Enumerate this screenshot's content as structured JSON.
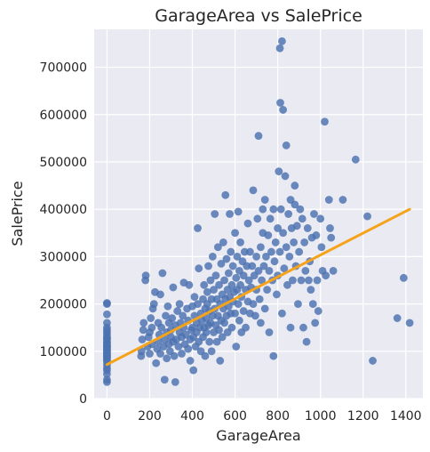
{
  "chart_data": {
    "type": "scatter",
    "title": "GarageArea vs SalePrice",
    "xlabel": "GarageArea",
    "ylabel": "SalePrice",
    "xlim": [
      -60,
      1480
    ],
    "ylim": [
      0,
      780000
    ],
    "xticks": [
      0,
      200,
      400,
      600,
      800,
      1000,
      1200,
      1400
    ],
    "yticks": [
      0,
      100000,
      200000,
      300000,
      400000,
      500000,
      600000,
      700000
    ],
    "grid": true,
    "colors": {
      "points": "#4c72b0",
      "regression": "#f5a31a",
      "background": "#eaeaf2",
      "grid": "#ffffff"
    },
    "regression_line": {
      "x": [
        0,
        1418
      ],
      "y": [
        72000,
        400000
      ]
    },
    "points": [
      [
        0,
        35000
      ],
      [
        0,
        40000
      ],
      [
        0,
        52000
      ],
      [
        0,
        60000
      ],
      [
        0,
        65000
      ],
      [
        0,
        72000
      ],
      [
        0,
        78000
      ],
      [
        0,
        82000
      ],
      [
        0,
        85000
      ],
      [
        0,
        88000
      ],
      [
        0,
        90000
      ],
      [
        0,
        92000
      ],
      [
        0,
        95000
      ],
      [
        0,
        98000
      ],
      [
        0,
        100000
      ],
      [
        0,
        102000
      ],
      [
        0,
        105000
      ],
      [
        0,
        108000
      ],
      [
        0,
        110000
      ],
      [
        0,
        112000
      ],
      [
        0,
        115000
      ],
      [
        0,
        118000
      ],
      [
        0,
        120000
      ],
      [
        0,
        125000
      ],
      [
        0,
        128000
      ],
      [
        0,
        130000
      ],
      [
        0,
        135000
      ],
      [
        0,
        140000
      ],
      [
        0,
        145000
      ],
      [
        0,
        150000
      ],
      [
        0,
        160000
      ],
      [
        0,
        178000
      ],
      [
        0,
        200000
      ],
      [
        0,
        202000
      ],
      [
        160,
        90000
      ],
      [
        162,
        100000
      ],
      [
        165,
        125000
      ],
      [
        170,
        145000
      ],
      [
        172,
        160000
      ],
      [
        180,
        250000
      ],
      [
        182,
        260000
      ],
      [
        190,
        110000
      ],
      [
        195,
        130000
      ],
      [
        200,
        95000
      ],
      [
        200,
        140000
      ],
      [
        205,
        170000
      ],
      [
        210,
        115000
      ],
      [
        210,
        150000
      ],
      [
        215,
        190000
      ],
      [
        220,
        200000
      ],
      [
        225,
        225000
      ],
      [
        230,
        75000
      ],
      [
        235,
        105000
      ],
      [
        240,
        120000
      ],
      [
        240,
        160000
      ],
      [
        245,
        135000
      ],
      [
        250,
        95000
      ],
      [
        250,
        220000
      ],
      [
        255,
        150000
      ],
      [
        260,
        265000
      ],
      [
        265,
        110000
      ],
      [
        270,
        40000
      ],
      [
        270,
        125000
      ],
      [
        275,
        175000
      ],
      [
        280,
        85000
      ],
      [
        280,
        140000
      ],
      [
        285,
        195000
      ],
      [
        290,
        115000
      ],
      [
        290,
        160000
      ],
      [
        295,
        100000
      ],
      [
        300,
        130000
      ],
      [
        300,
        145000
      ],
      [
        305,
        170000
      ],
      [
        310,
        120000
      ],
      [
        310,
        235000
      ],
      [
        315,
        90000
      ],
      [
        320,
        155000
      ],
      [
        320,
        35000
      ],
      [
        325,
        125000
      ],
      [
        330,
        185000
      ],
      [
        335,
        110000
      ],
      [
        340,
        140000
      ],
      [
        340,
        200000
      ],
      [
        345,
        160000
      ],
      [
        350,
        95000
      ],
      [
        350,
        130000
      ],
      [
        355,
        175000
      ],
      [
        360,
        150000
      ],
      [
        360,
        245000
      ],
      [
        365,
        115000
      ],
      [
        370,
        135000
      ],
      [
        375,
        190000
      ],
      [
        380,
        105000
      ],
      [
        380,
        165000
      ],
      [
        385,
        240000
      ],
      [
        390,
        125000
      ],
      [
        390,
        80000
      ],
      [
        395,
        145000
      ],
      [
        400,
        150000
      ],
      [
        400,
        195000
      ],
      [
        405,
        60000
      ],
      [
        405,
        130000
      ],
      [
        410,
        175000
      ],
      [
        410,
        215000
      ],
      [
        415,
        110000
      ],
      [
        420,
        140000
      ],
      [
        420,
        160000
      ],
      [
        425,
        200000
      ],
      [
        425,
        360000
      ],
      [
        430,
        120000
      ],
      [
        430,
        275000
      ],
      [
        435,
        150000
      ],
      [
        440,
        180000
      ],
      [
        440,
        100000
      ],
      [
        445,
        165000
      ],
      [
        450,
        130000
      ],
      [
        450,
        210000
      ],
      [
        455,
        240000
      ],
      [
        455,
        150000
      ],
      [
        460,
        190000
      ],
      [
        460,
        90000
      ],
      [
        465,
        170000
      ],
      [
        465,
        140000
      ],
      [
        470,
        225000
      ],
      [
        470,
        200000
      ],
      [
        475,
        155000
      ],
      [
        475,
        280000
      ],
      [
        480,
        120000
      ],
      [
        480,
        185000
      ],
      [
        485,
        250000
      ],
      [
        485,
        160000
      ],
      [
        490,
        210000
      ],
      [
        490,
        100000
      ],
      [
        495,
        175000
      ],
      [
        495,
        300000
      ],
      [
        500,
        140000
      ],
      [
        500,
        230000
      ],
      [
        505,
        190000
      ],
      [
        505,
        390000
      ],
      [
        510,
        155000
      ],
      [
        510,
        260000
      ],
      [
        515,
        210000
      ],
      [
        515,
        120000
      ],
      [
        520,
        175000
      ],
      [
        520,
        320000
      ],
      [
        525,
        145000
      ],
      [
        525,
        240000
      ],
      [
        530,
        200000
      ],
      [
        530,
        80000
      ],
      [
        535,
        165000
      ],
      [
        535,
        285000
      ],
      [
        540,
        220000
      ],
      [
        540,
        130000
      ],
      [
        545,
        190000
      ],
      [
        545,
        330000
      ],
      [
        550,
        250000
      ],
      [
        550,
        160000
      ],
      [
        555,
        210000
      ],
      [
        555,
        430000
      ],
      [
        560,
        175000
      ],
      [
        560,
        295000
      ],
      [
        565,
        230000
      ],
      [
        565,
        140000
      ],
      [
        570,
        195000
      ],
      [
        570,
        265000
      ],
      [
        575,
        215000
      ],
      [
        575,
        390000
      ],
      [
        580,
        180000
      ],
      [
        580,
        310000
      ],
      [
        585,
        240000
      ],
      [
        585,
        150000
      ],
      [
        590,
        205000
      ],
      [
        590,
        280000
      ],
      [
        595,
        225000
      ],
      [
        600,
        180000
      ],
      [
        600,
        350000
      ],
      [
        605,
        255000
      ],
      [
        605,
        110000
      ],
      [
        610,
        230000
      ],
      [
        610,
        300000
      ],
      [
        615,
        200000
      ],
      [
        615,
        395000
      ],
      [
        620,
        270000
      ],
      [
        620,
        165000
      ],
      [
        625,
        240000
      ],
      [
        625,
        330000
      ],
      [
        630,
        215000
      ],
      [
        630,
        140000
      ],
      [
        635,
        290000
      ],
      [
        640,
        185000
      ],
      [
        640,
        260000
      ],
      [
        645,
        310000
      ],
      [
        650,
        230000
      ],
      [
        650,
        150000
      ],
      [
        655,
        280000
      ],
      [
        660,
        205000
      ],
      [
        660,
        370000
      ],
      [
        665,
        250000
      ],
      [
        670,
        180000
      ],
      [
        670,
        310000
      ],
      [
        675,
        235000
      ],
      [
        680,
        280000
      ],
      [
        685,
        200000
      ],
      [
        685,
        440000
      ],
      [
        690,
        260000
      ],
      [
        695,
        175000
      ],
      [
        700,
        300000
      ],
      [
        700,
        230000
      ],
      [
        705,
        380000
      ],
      [
        710,
        270000
      ],
      [
        710,
        555000
      ],
      [
        715,
        210000
      ],
      [
        720,
        320000
      ],
      [
        720,
        160000
      ],
      [
        725,
        250000
      ],
      [
        730,
        350000
      ],
      [
        730,
        400000
      ],
      [
        735,
        280000
      ],
      [
        740,
        190000
      ],
      [
        740,
        420000
      ],
      [
        745,
        300000
      ],
      [
        750,
        230000
      ],
      [
        755,
        345000
      ],
      [
        760,
        270000
      ],
      [
        760,
        140000
      ],
      [
        765,
        380000
      ],
      [
        770,
        310000
      ],
      [
        775,
        250000
      ],
      [
        780,
        400000
      ],
      [
        780,
        90000
      ],
      [
        785,
        290000
      ],
      [
        790,
        330000
      ],
      [
        795,
        220000
      ],
      [
        800,
        360000
      ],
      [
        800,
        260000
      ],
      [
        805,
        480000
      ],
      [
        810,
        310000
      ],
      [
        810,
        740000
      ],
      [
        812,
        625000
      ],
      [
        815,
        400000
      ],
      [
        820,
        755000
      ],
      [
        820,
        180000
      ],
      [
        825,
        610000
      ],
      [
        825,
        350000
      ],
      [
        830,
        275000
      ],
      [
        835,
        470000
      ],
      [
        840,
        535000
      ],
      [
        840,
        320000
      ],
      [
        845,
        240000
      ],
      [
        850,
        390000
      ],
      [
        855,
        300000
      ],
      [
        860,
        420000
      ],
      [
        860,
        150000
      ],
      [
        865,
        360000
      ],
      [
        870,
        250000
      ],
      [
        875,
        330000
      ],
      [
        880,
        450000
      ],
      [
        880,
        410000
      ],
      [
        885,
        280000
      ],
      [
        890,
        365000
      ],
      [
        895,
        200000
      ],
      [
        900,
        310000
      ],
      [
        905,
        400000
      ],
      [
        910,
        250000
      ],
      [
        915,
        380000
      ],
      [
        920,
        150000
      ],
      [
        925,
        330000
      ],
      [
        930,
        270000
      ],
      [
        935,
        120000
      ],
      [
        940,
        360000
      ],
      [
        945,
        250000
      ],
      [
        950,
        290000
      ],
      [
        955,
        230000
      ],
      [
        960,
        340000
      ],
      [
        965,
        200000
      ],
      [
        970,
        390000
      ],
      [
        975,
        160000
      ],
      [
        980,
        345000
      ],
      [
        985,
        250000
      ],
      [
        990,
        185000
      ],
      [
        1000,
        380000
      ],
      [
        1005,
        320000
      ],
      [
        1010,
        270000
      ],
      [
        1020,
        585000
      ],
      [
        1025,
        260000
      ],
      [
        1040,
        420000
      ],
      [
        1045,
        360000
      ],
      [
        1050,
        340000
      ],
      [
        1060,
        270000
      ],
      [
        1105,
        420000
      ],
      [
        1165,
        505000
      ],
      [
        1220,
        385000
      ],
      [
        1245,
        80000
      ],
      [
        1360,
        170000
      ],
      [
        1390,
        255000
      ],
      [
        1418,
        160000
      ]
    ]
  }
}
